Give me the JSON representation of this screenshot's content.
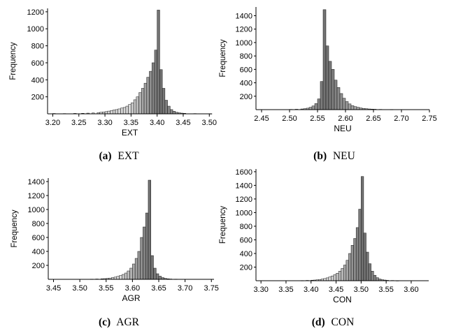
{
  "chart_data": [
    {
      "type": "bar",
      "caption_label": "(a)",
      "caption_text": "EXT",
      "xlabel": "EXT",
      "ylabel": "Frequency",
      "xlim": [
        3.19,
        3.505
      ],
      "ylim": [
        0,
        1240
      ],
      "xticks": [
        "3.20",
        "3.25",
        "3.30",
        "3.35",
        "3.40",
        "3.45",
        "3.50"
      ],
      "yticks": [
        200,
        400,
        600,
        800,
        1000,
        1200
      ],
      "bin_width": 0.005,
      "bins": [
        [
          3.2,
          4
        ],
        [
          3.22,
          3
        ],
        [
          3.24,
          5
        ],
        [
          3.255,
          6
        ],
        [
          3.265,
          8
        ],
        [
          3.275,
          10
        ],
        [
          3.285,
          14
        ],
        [
          3.29,
          18
        ],
        [
          3.295,
          22
        ],
        [
          3.3,
          26
        ],
        [
          3.305,
          32
        ],
        [
          3.31,
          38
        ],
        [
          3.315,
          45
        ],
        [
          3.32,
          50
        ],
        [
          3.325,
          58
        ],
        [
          3.33,
          68
        ],
        [
          3.335,
          75
        ],
        [
          3.34,
          90
        ],
        [
          3.345,
          110
        ],
        [
          3.35,
          130
        ],
        [
          3.355,
          165
        ],
        [
          3.36,
          200
        ],
        [
          3.365,
          250
        ],
        [
          3.37,
          300
        ],
        [
          3.375,
          360
        ],
        [
          3.38,
          430
        ],
        [
          3.385,
          500
        ],
        [
          3.39,
          600
        ],
        [
          3.395,
          750
        ],
        [
          3.4,
          1220
        ],
        [
          3.405,
          520
        ],
        [
          3.41,
          300
        ],
        [
          3.415,
          160
        ],
        [
          3.42,
          90
        ],
        [
          3.425,
          50
        ],
        [
          3.43,
          30
        ],
        [
          3.435,
          18
        ],
        [
          3.44,
          12
        ],
        [
          3.445,
          8
        ],
        [
          3.45,
          6
        ],
        [
          3.47,
          3
        ],
        [
          3.5,
          2
        ]
      ]
    },
    {
      "type": "bar",
      "caption_label": "(b)",
      "caption_text": "NEU",
      "xlabel": "NEU",
      "ylabel": "Frequency",
      "xlim": [
        2.44,
        2.75
      ],
      "ylim": [
        0,
        1530
      ],
      "xticks": [
        "2.45",
        "2.50",
        "2.55",
        "2.60",
        "2.65",
        "2.70",
        "2.75"
      ],
      "yticks": [
        200,
        400,
        600,
        800,
        1000,
        1200,
        1400
      ],
      "bin_width": 0.005,
      "bins": [
        [
          2.5,
          4
        ],
        [
          2.51,
          6
        ],
        [
          2.52,
          10
        ],
        [
          2.525,
          15
        ],
        [
          2.53,
          22
        ],
        [
          2.535,
          35
        ],
        [
          2.54,
          55
        ],
        [
          2.545,
          90
        ],
        [
          2.55,
          160
        ],
        [
          2.555,
          420
        ],
        [
          2.56,
          1490
        ],
        [
          2.565,
          950
        ],
        [
          2.57,
          720
        ],
        [
          2.575,
          600
        ],
        [
          2.58,
          440
        ],
        [
          2.585,
          330
        ],
        [
          2.59,
          240
        ],
        [
          2.595,
          170
        ],
        [
          2.6,
          120
        ],
        [
          2.605,
          85
        ],
        [
          2.61,
          60
        ],
        [
          2.615,
          45
        ],
        [
          2.62,
          35
        ],
        [
          2.625,
          25
        ],
        [
          2.63,
          18
        ],
        [
          2.635,
          14
        ],
        [
          2.64,
          10
        ],
        [
          2.645,
          8
        ],
        [
          2.65,
          6
        ],
        [
          2.66,
          4
        ],
        [
          2.68,
          3
        ]
      ]
    },
    {
      "type": "bar",
      "caption_label": "(c)",
      "caption_text": "AGR",
      "xlabel": "AGR",
      "ylabel": "Frequency",
      "xlim": [
        3.44,
        3.755
      ],
      "ylim": [
        0,
        1450
      ],
      "xticks": [
        "3.45",
        "3.50",
        "3.55",
        "3.60",
        "3.65",
        "3.70",
        "3.75"
      ],
      "yticks": [
        200,
        400,
        600,
        800,
        1000,
        1200,
        1400
      ],
      "bin_width": 0.005,
      "bins": [
        [
          3.52,
          3
        ],
        [
          3.53,
          5
        ],
        [
          3.54,
          8
        ],
        [
          3.545,
          10
        ],
        [
          3.55,
          14
        ],
        [
          3.555,
          18
        ],
        [
          3.56,
          25
        ],
        [
          3.565,
          32
        ],
        [
          3.57,
          42
        ],
        [
          3.575,
          55
        ],
        [
          3.58,
          70
        ],
        [
          3.585,
          90
        ],
        [
          3.59,
          120
        ],
        [
          3.595,
          160
        ],
        [
          3.6,
          220
        ],
        [
          3.605,
          300
        ],
        [
          3.61,
          400
        ],
        [
          3.615,
          600
        ],
        [
          3.62,
          750
        ],
        [
          3.625,
          950
        ],
        [
          3.63,
          1420
        ],
        [
          3.635,
          340
        ],
        [
          3.64,
          160
        ],
        [
          3.645,
          80
        ],
        [
          3.65,
          45
        ],
        [
          3.655,
          25
        ],
        [
          3.66,
          14
        ],
        [
          3.665,
          8
        ],
        [
          3.67,
          5
        ],
        [
          3.68,
          3
        ]
      ]
    },
    {
      "type": "bar",
      "caption_label": "(d)",
      "caption_text": "CON",
      "xlabel": "CON",
      "ylabel": "Frequency",
      "xlim": [
        3.29,
        3.635
      ],
      "ylim": [
        0,
        1640
      ],
      "xticks": [
        "3.30",
        "3.35",
        "3.40",
        "3.45",
        "3.50",
        "3.55",
        "3.60"
      ],
      "yticks": [
        200,
        400,
        600,
        800,
        1000,
        1200,
        1400,
        1600
      ],
      "bin_width": 0.005,
      "bins": [
        [
          3.38,
          3
        ],
        [
          3.39,
          5
        ],
        [
          3.4,
          8
        ],
        [
          3.405,
          10
        ],
        [
          3.41,
          14
        ],
        [
          3.415,
          18
        ],
        [
          3.42,
          25
        ],
        [
          3.425,
          32
        ],
        [
          3.43,
          42
        ],
        [
          3.435,
          55
        ],
        [
          3.44,
          70
        ],
        [
          3.445,
          90
        ],
        [
          3.45,
          110
        ],
        [
          3.455,
          140
        ],
        [
          3.46,
          180
        ],
        [
          3.465,
          230
        ],
        [
          3.47,
          300
        ],
        [
          3.475,
          400
        ],
        [
          3.48,
          520
        ],
        [
          3.485,
          620
        ],
        [
          3.49,
          780
        ],
        [
          3.495,
          1050
        ],
        [
          3.5,
          1530
        ],
        [
          3.505,
          700
        ],
        [
          3.51,
          420
        ],
        [
          3.515,
          250
        ],
        [
          3.52,
          140
        ],
        [
          3.525,
          80
        ],
        [
          3.53,
          45
        ],
        [
          3.535,
          25
        ],
        [
          3.54,
          15
        ],
        [
          3.545,
          10
        ],
        [
          3.55,
          6
        ],
        [
          3.56,
          4
        ],
        [
          3.57,
          2
        ]
      ]
    }
  ]
}
